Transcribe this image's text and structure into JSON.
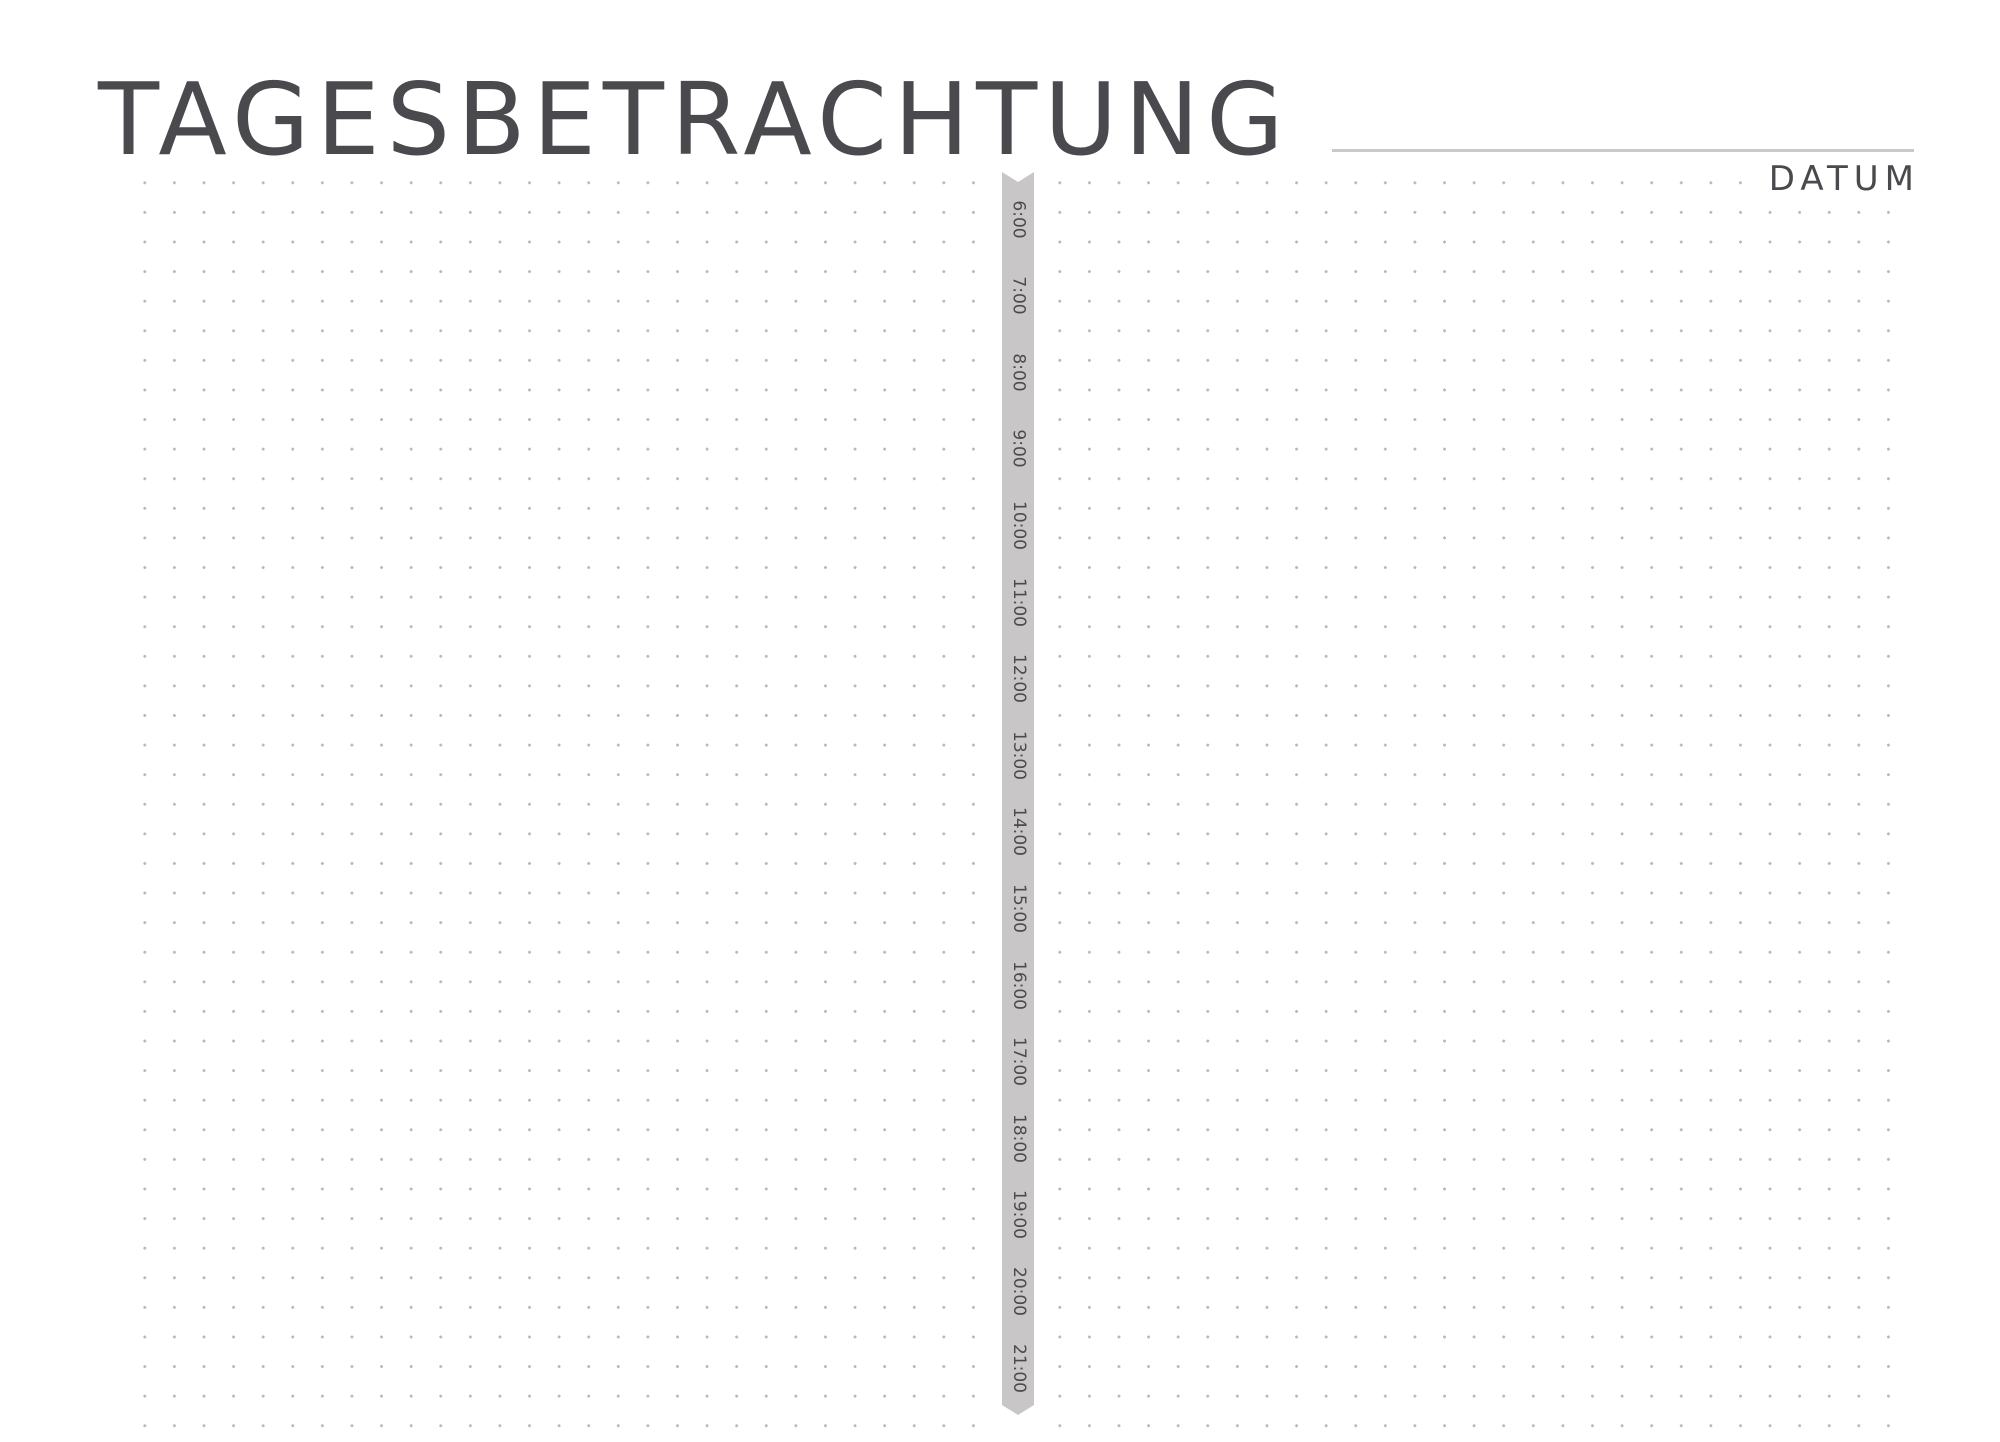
{
  "page": {
    "title": "TAGESBETRACHTUNG",
    "date_label": "DATUM"
  },
  "timeline": {
    "hours": [
      "6:00",
      "7:00",
      "8:00",
      "9:00",
      "10:00",
      "11:00",
      "12:00",
      "13:00",
      "14:00",
      "15:00",
      "16:00",
      "17:00",
      "18:00",
      "19:00",
      "20:00",
      "21:00"
    ]
  },
  "colors": {
    "text": "#4a4a4e",
    "ribbon": "#c8c6c6",
    "dots": "#b8b8b8",
    "date_line": "#c9c9c9"
  }
}
